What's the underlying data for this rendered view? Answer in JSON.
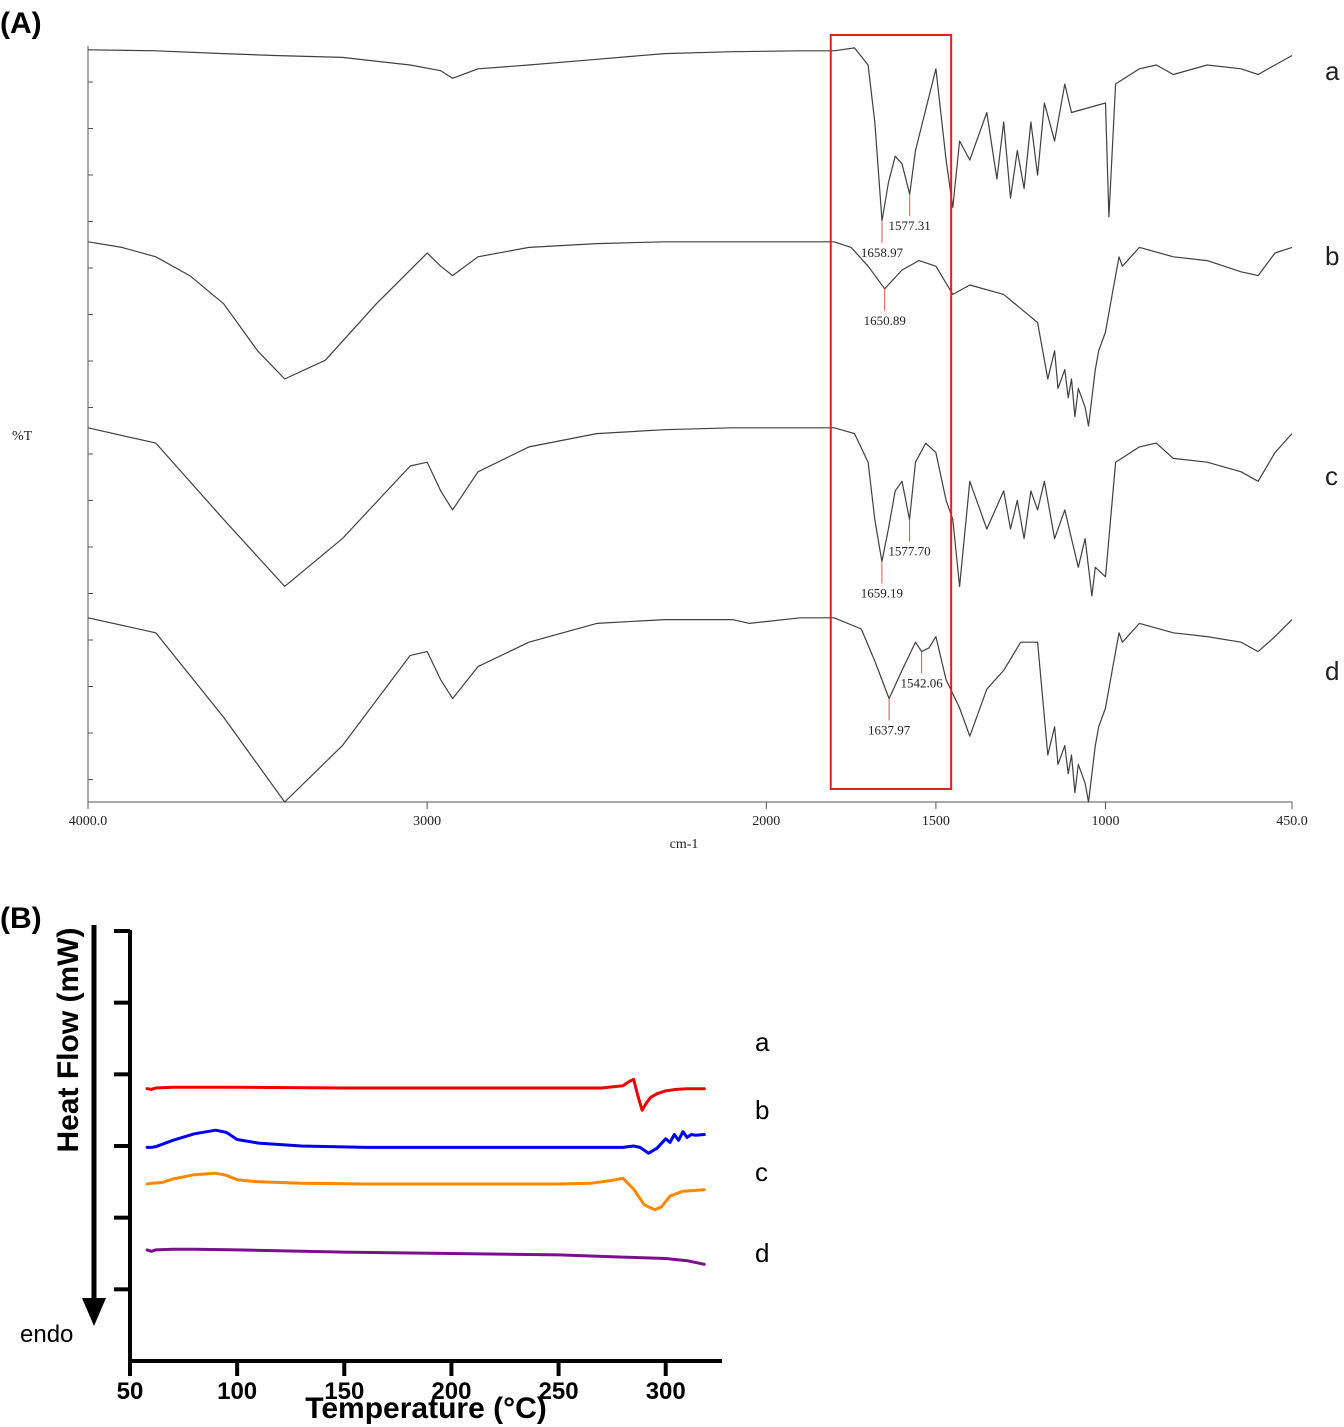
{
  "panels": {
    "A_label": "(A)",
    "B_label": "(B)"
  },
  "colors": {
    "ftir_trace": "#404040",
    "peak_marker": "#e05050",
    "highlight_box": "#e02020",
    "dsc_a": "#ee0000",
    "dsc_b": "#0000ee",
    "dsc_c": "#ff8800",
    "dsc_d": "#7b0f8e"
  },
  "chart_data": [
    {
      "type": "line",
      "panel": "A",
      "xlabel": "cm-1",
      "ylabel": "%T",
      "xlim": [
        4000,
        450
      ],
      "x_ticks": [
        "4000.0",
        "3000",
        "2000",
        "1500",
        "1000",
        "450.0"
      ],
      "highlight_region": [
        1810,
        1455
      ],
      "series": [
        {
          "name": "a",
          "x": [
            4000,
            3800,
            3600,
            3450,
            3250,
            3050,
            2960,
            2925,
            2850,
            2700,
            2500,
            2300,
            2100,
            1900,
            1800,
            1740,
            1700,
            1680,
            1658.97,
            1640,
            1620,
            1600,
            1577.31,
            1560,
            1500,
            1470,
            1450,
            1430,
            1400,
            1350,
            1320,
            1300,
            1280,
            1260,
            1240,
            1220,
            1200,
            1180,
            1150,
            1120,
            1100,
            1000,
            990,
            970,
            900,
            850,
            800,
            700,
            600,
            550,
            500,
            450
          ],
          "y": [
            2,
            2.5,
            4,
            5,
            6,
            10,
            13,
            17,
            12,
            10,
            7,
            4,
            3,
            2.5,
            2.5,
            1,
            10,
            40,
            92,
            72,
            58,
            62,
            78,
            55,
            12,
            60,
            85,
            50,
            60,
            35,
            70,
            40,
            80,
            55,
            75,
            40,
            68,
            30,
            50,
            20,
            35,
            30,
            90,
            20,
            12,
            10,
            15,
            10,
            12,
            15,
            10,
            5
          ]
        },
        {
          "name": "b",
          "x": [
            4000,
            3900,
            3800,
            3700,
            3600,
            3500,
            3420,
            3300,
            3150,
            3000,
            2960,
            2925,
            2850,
            2700,
            2500,
            2300,
            2100,
            1900,
            1800,
            1750,
            1700,
            1650.89,
            1600,
            1550,
            1500,
            1450,
            1400,
            1300,
            1200,
            1170,
            1150,
            1140,
            1120,
            1110,
            1100,
            1090,
            1080,
            1060,
            1050,
            1040,
            1030,
            1020,
            1000,
            980,
            960,
            950,
            900,
            800,
            700,
            600,
            550,
            500,
            450
          ],
          "y": [
            2,
            5,
            10,
            20,
            35,
            60,
            75,
            65,
            35,
            8,
            15,
            20,
            10,
            5,
            3,
            2,
            2,
            2,
            2,
            5,
            15,
            27,
            17,
            12,
            15,
            30,
            25,
            30,
            45,
            75,
            60,
            80,
            70,
            85,
            75,
            95,
            80,
            90,
            100,
            85,
            70,
            60,
            50,
            30,
            10,
            15,
            5,
            10,
            12,
            18,
            20,
            8,
            5
          ]
        },
        {
          "name": "c",
          "x": [
            4000,
            3800,
            3600,
            3420,
            3250,
            3050,
            3000,
            2960,
            2925,
            2850,
            2700,
            2500,
            2300,
            2100,
            1900,
            1800,
            1740,
            1700,
            1680,
            1659.19,
            1640,
            1620,
            1600,
            1577.7,
            1560,
            1530,
            1500,
            1470,
            1450,
            1430,
            1400,
            1350,
            1300,
            1280,
            1260,
            1240,
            1220,
            1200,
            1180,
            1150,
            1120,
            1100,
            1080,
            1060,
            1040,
            1030,
            1000,
            990,
            970,
            900,
            850,
            800,
            700,
            600,
            550,
            500,
            450
          ],
          "y": [
            2,
            10,
            50,
            85,
            60,
            22,
            20,
            35,
            45,
            25,
            12,
            5,
            3,
            2,
            2,
            2,
            5,
            20,
            50,
            72,
            55,
            35,
            30,
            50,
            20,
            10,
            15,
            40,
            50,
            85,
            30,
            55,
            35,
            55,
            40,
            60,
            35,
            45,
            30,
            60,
            45,
            60,
            75,
            60,
            90,
            75,
            80,
            60,
            20,
            12,
            10,
            18,
            20,
            25,
            30,
            15,
            5
          ]
        },
        {
          "name": "d",
          "x": [
            4000,
            3800,
            3600,
            3420,
            3250,
            3050,
            3000,
            2960,
            2925,
            2850,
            2700,
            2500,
            2300,
            2100,
            2050,
            1900,
            1800,
            1720,
            1680,
            1637.97,
            1600,
            1560,
            1542.06,
            1520,
            1500,
            1470,
            1430,
            1400,
            1380,
            1350,
            1300,
            1250,
            1200,
            1170,
            1150,
            1140,
            1120,
            1110,
            1100,
            1090,
            1080,
            1060,
            1050,
            1040,
            1030,
            1020,
            1000,
            980,
            960,
            950,
            900,
            800,
            700,
            600,
            550,
            500,
            450
          ],
          "y": [
            2,
            10,
            55,
            100,
            70,
            22,
            20,
            35,
            45,
            28,
            15,
            5,
            3,
            3,
            5,
            2,
            2,
            8,
            25,
            45,
            30,
            15,
            20,
            18,
            12,
            35,
            50,
            65,
            55,
            40,
            30,
            15,
            15,
            75,
            60,
            80,
            70,
            85,
            75,
            95,
            80,
            90,
            100,
            85,
            70,
            60,
            50,
            30,
            10,
            15,
            5,
            10,
            12,
            15,
            20,
            12,
            3
          ]
        }
      ],
      "annotations": [
        {
          "series": "a",
          "x": 1658.97,
          "text": "1658.97"
        },
        {
          "series": "a",
          "x": 1577.31,
          "text": "1577.31"
        },
        {
          "series": "b",
          "x": 1650.89,
          "text": "1650.89"
        },
        {
          "series": "c",
          "x": 1659.19,
          "text": "1659.19"
        },
        {
          "series": "c",
          "x": 1577.7,
          "text": "1577.70"
        },
        {
          "series": "d",
          "x": 1637.97,
          "text": "1637.97"
        },
        {
          "series": "d",
          "x": 1542.06,
          "text": "1542.06"
        }
      ]
    },
    {
      "type": "line",
      "panel": "B",
      "xlabel": "Temperature (°C)",
      "ylabel": "Heat Flow (mW)",
      "endo_label": "endo",
      "xlim": [
        50,
        330
      ],
      "x_ticks": [
        50,
        100,
        150,
        200,
        250,
        300
      ],
      "ylim": [
        0,
        6
      ],
      "y_ticks": [
        1,
        2,
        3,
        4,
        5,
        6
      ],
      "series": [
        {
          "name": "a",
          "color_key": "dsc_a",
          "x": [
            58,
            60,
            62,
            70,
            100,
            150,
            200,
            250,
            270,
            280,
            283,
            285,
            287,
            289,
            291,
            293,
            296,
            300,
            305,
            310,
            318
          ],
          "y": [
            3.8,
            3.79,
            3.81,
            3.82,
            3.82,
            3.81,
            3.81,
            3.81,
            3.81,
            3.84,
            3.9,
            3.93,
            3.7,
            3.5,
            3.6,
            3.68,
            3.73,
            3.77,
            3.79,
            3.8,
            3.8
          ]
        },
        {
          "name": "b",
          "color_key": "dsc_b",
          "x": [
            58,
            60,
            62,
            70,
            80,
            90,
            95,
            100,
            110,
            130,
            160,
            200,
            250,
            280,
            285,
            288,
            292,
            296,
            300,
            302,
            304,
            306,
            308,
            310,
            312,
            314,
            318
          ],
          "y": [
            2.98,
            2.98,
            2.99,
            3.08,
            3.17,
            3.22,
            3.19,
            3.09,
            3.04,
            3.0,
            2.98,
            2.98,
            2.98,
            2.98,
            3.0,
            2.98,
            2.9,
            2.97,
            3.1,
            3.05,
            3.16,
            3.08,
            3.2,
            3.12,
            3.16,
            3.15,
            3.16
          ]
        },
        {
          "name": "c",
          "color_key": "dsc_c",
          "x": [
            58,
            60,
            65,
            70,
            80,
            90,
            95,
            100,
            110,
            130,
            160,
            200,
            250,
            265,
            275,
            280,
            285,
            290,
            295,
            298,
            302,
            308,
            318
          ],
          "y": [
            2.47,
            2.48,
            2.49,
            2.54,
            2.6,
            2.62,
            2.59,
            2.53,
            2.5,
            2.48,
            2.47,
            2.47,
            2.47,
            2.48,
            2.52,
            2.55,
            2.4,
            2.18,
            2.11,
            2.15,
            2.3,
            2.37,
            2.39
          ]
        },
        {
          "name": "d",
          "color_key": "dsc_d",
          "x": [
            58,
            60,
            62,
            70,
            80,
            100,
            150,
            200,
            250,
            280,
            300,
            310,
            318
          ],
          "y": [
            1.55,
            1.53,
            1.55,
            1.56,
            1.56,
            1.55,
            1.52,
            1.5,
            1.48,
            1.45,
            1.43,
            1.4,
            1.35
          ]
        }
      ]
    }
  ]
}
